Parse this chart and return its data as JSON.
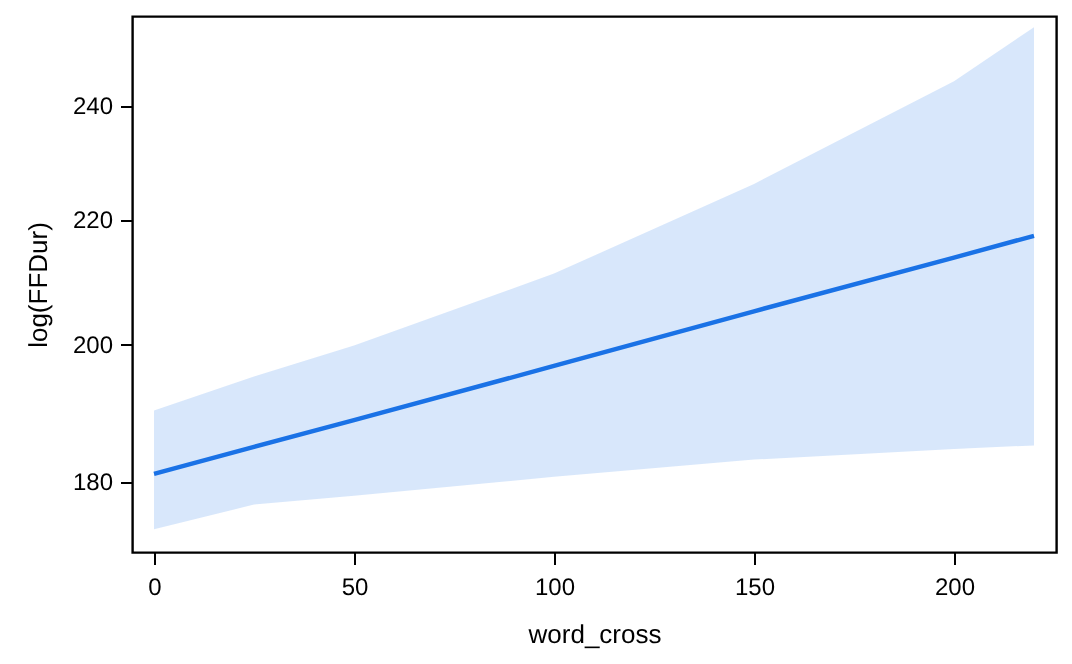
{
  "chart_data": {
    "type": "line",
    "xlabel": "word_cross",
    "ylabel": "log(FFDur)",
    "log": "y",
    "grid": false,
    "xlim": [
      -5.5,
      225.5
    ],
    "xticks": [
      0,
      50,
      100,
      150,
      200
    ],
    "ylim": [
      170.5,
      257
    ],
    "yticks": [
      180,
      200,
      220,
      240
    ],
    "series": [
      {
        "color": "#1a72e6",
        "x": [
          0,
          25,
          50,
          100,
          150,
          200,
          220
        ],
        "values": [
          181,
          184.8,
          188.6,
          196.6,
          205,
          213.6,
          217.2
        ],
        "lower": [
          173.5,
          176.8,
          178,
          180.6,
          183,
          184.5,
          185
        ],
        "upper": [
          190,
          195,
          199.7,
          211,
          226,
          244.5,
          254.8
        ]
      }
    ]
  }
}
